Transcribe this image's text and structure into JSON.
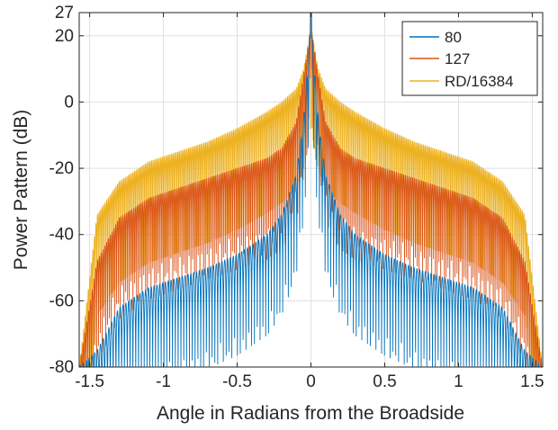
{
  "chart_data": {
    "type": "line",
    "title": "",
    "xlabel": "Angle in Radians from the Broadside",
    "ylabel": "Power Pattern (dB)",
    "xlim": [
      -1.5708,
      1.5708
    ],
    "ylim": [
      -80,
      27
    ],
    "xticks": [
      -1.5,
      -1,
      -0.5,
      0,
      0.5,
      1,
      1.5
    ],
    "xtick_labels": [
      "-1.5",
      "-1",
      "-0.5",
      "0",
      "0.5",
      "1",
      "1.5"
    ],
    "yticks": [
      -80,
      -60,
      -40,
      -20,
      0,
      20,
      27
    ],
    "ytick_labels": [
      "-80",
      "-60",
      "-40",
      "-20",
      "0",
      "20",
      "27"
    ],
    "grid": true,
    "legend_position": "top-right",
    "series": [
      {
        "name": "80",
        "color": "#0072BD",
        "peak_db": 27,
        "envelope": {
          "x": [
            0.0,
            0.01,
            0.05,
            0.1,
            0.2,
            0.3,
            0.5,
            0.7,
            0.9,
            1.1,
            1.3,
            1.45,
            1.5708
          ],
          "y": [
            27,
            18,
            -5,
            -22,
            -34,
            -40,
            -46,
            -50,
            -53,
            -56,
            -62,
            -75,
            -80
          ]
        }
      },
      {
        "name": "127",
        "color": "#D95319",
        "peak_db": 27,
        "envelope": {
          "x": [
            0.0,
            0.01,
            0.05,
            0.1,
            0.2,
            0.3,
            0.5,
            0.7,
            0.9,
            1.1,
            1.3,
            1.45,
            1.5708
          ],
          "y": [
            27,
            20,
            8,
            -6,
            -14,
            -17,
            -20,
            -23,
            -26,
            -29,
            -35,
            -48,
            -80
          ]
        }
      },
      {
        "name": "RD/16384",
        "color": "#EDB120",
        "peak_db": 27,
        "envelope": {
          "x": [
            0.0,
            0.01,
            0.05,
            0.1,
            0.2,
            0.3,
            0.5,
            0.7,
            0.9,
            1.1,
            1.3,
            1.45,
            1.5708
          ],
          "y": [
            27,
            20,
            10,
            4,
            0,
            -3,
            -8,
            -12,
            -15,
            -18,
            -24,
            -34,
            -80
          ]
        }
      }
    ]
  }
}
